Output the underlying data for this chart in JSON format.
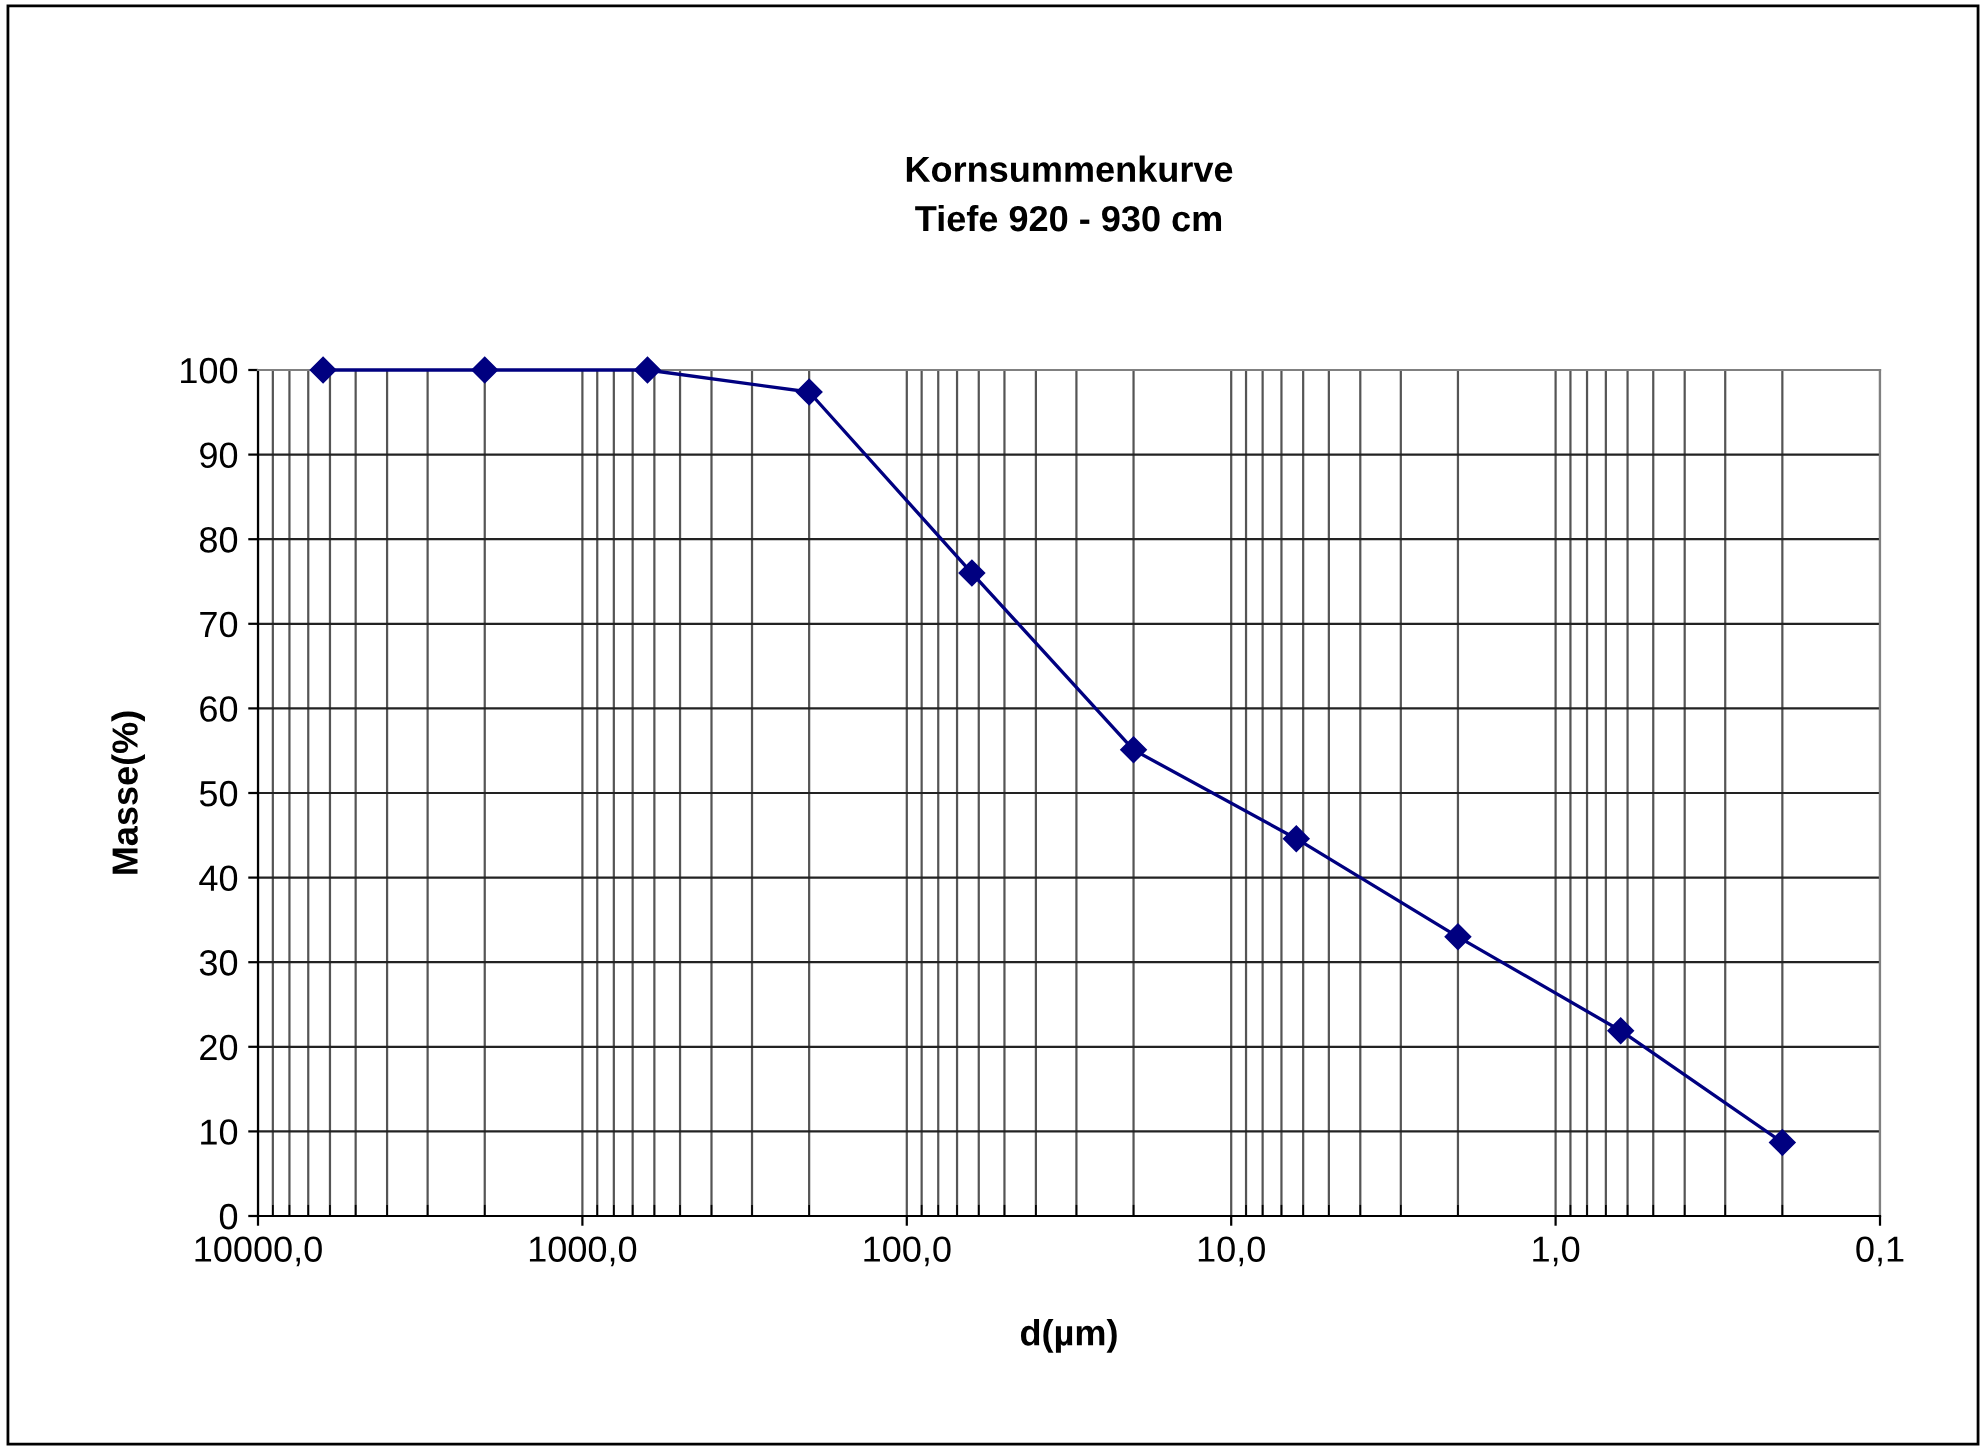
{
  "chart_data": {
    "type": "line",
    "title": "Kornsummenkurve\nTiefe 920 - 930 cm",
    "xlabel": "d(µm)",
    "ylabel": "Masse(%)",
    "log": "x",
    "x": [
      6300,
      2000,
      630,
      200,
      63,
      20,
      6.3,
      2,
      0.63,
      0.2
    ],
    "series": [
      {
        "color": "#000080",
        "values": [
          100,
          100,
          100,
          97.4,
          76,
          55.1,
          44.6,
          33,
          21.9,
          8.7
        ]
      }
    ],
    "xlim": [
      10000,
      0.1
    ],
    "xticks": [
      {
        "value": 10000,
        "label": "10000,0"
      },
      {
        "value": 1000,
        "label": "1000,0"
      },
      {
        "value": 100,
        "label": "100,0"
      },
      {
        "value": 10,
        "label": "10,0"
      },
      {
        "value": 1,
        "label": "1,0"
      },
      {
        "value": 0.1,
        "label": "0,1"
      }
    ],
    "ylim": [
      0,
      100
    ],
    "yticks": [
      0,
      10,
      20,
      30,
      40,
      50,
      60,
      70,
      80,
      90,
      100
    ],
    "grid": true,
    "marker": "diamond",
    "line_style": "solid"
  }
}
